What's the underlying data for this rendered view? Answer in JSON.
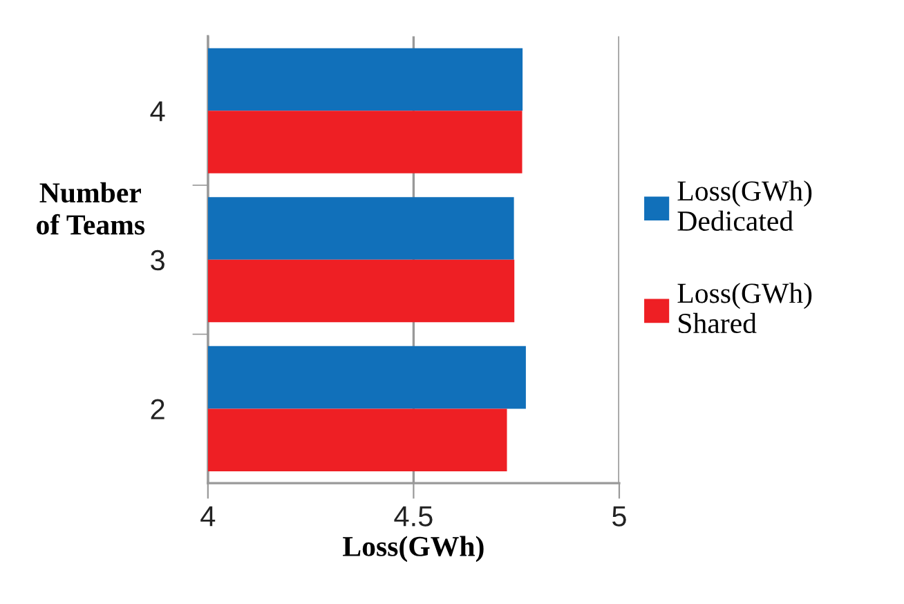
{
  "chart_data": {
    "type": "bar",
    "orientation": "horizontal",
    "categories": [
      "4",
      "3",
      "2"
    ],
    "series": [
      {
        "name": "Loss(GWh)\nDedicated",
        "color": "#1170ba",
        "values": [
          4.765,
          4.744,
          4.773
        ]
      },
      {
        "name": "Loss(GWh)\nShared",
        "color": "#ee1f24",
        "values": [
          4.764,
          4.745,
          4.727
        ]
      }
    ],
    "xlabel": "Loss(GWh)",
    "ylabel": "Number\nof Teams",
    "xlim": [
      4,
      5
    ],
    "xticks": [
      4,
      4.5,
      5
    ],
    "grid": "x",
    "legend": "right"
  }
}
